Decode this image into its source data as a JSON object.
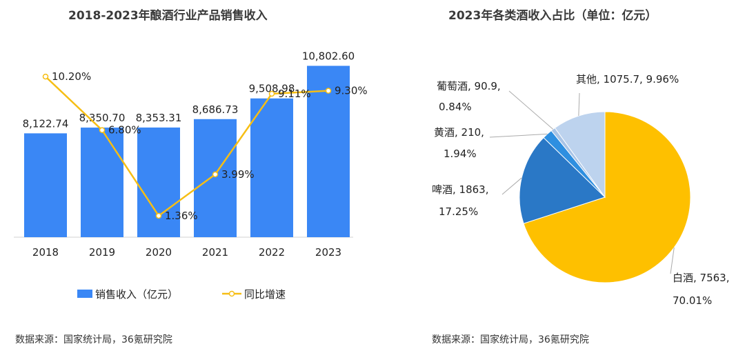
{
  "chart_data": [
    {
      "type": "bar",
      "title": "2018-2023年酿酒行业产品销售收入",
      "categories": [
        "2018",
        "2019",
        "2020",
        "2021",
        "2022",
        "2023"
      ],
      "series": [
        {
          "name": "销售收入（亿元）",
          "type": "bar",
          "values": [
            8122.74,
            8350.7,
            8353.31,
            8686.73,
            9508.98,
            10802.6
          ],
          "labels": [
            "8,122.74",
            "8,350.70",
            "8,353.31",
            "8,686.73",
            "9,508.98",
            "10,802.60"
          ]
        },
        {
          "name": "同比增速",
          "type": "line",
          "values": [
            10.2,
            6.8,
            1.36,
            3.99,
            9.11,
            9.3
          ],
          "labels": [
            "10.20%",
            "6.80%",
            "1.36%",
            "3.99%",
            "9.11%",
            "9.30%"
          ]
        }
      ],
      "colors": {
        "bar": "#3a87f5",
        "line": "#f6be14",
        "axis": "#d0d0d0"
      },
      "ylim": [
        4000,
        11500
      ],
      "y2lim": [
        0,
        12
      ],
      "legend": "bottom",
      "source": "数据来源：国家统计局，36氪研究院"
    },
    {
      "type": "pie",
      "title": "2023年各类酒收入占比（单位：亿元）",
      "slices": [
        {
          "name": "白酒",
          "value": 7563,
          "percent": "70.01%",
          "label1": "白酒, 7563,",
          "label2": "70.01%",
          "color": "#fec000"
        },
        {
          "name": "啤酒",
          "value": 1863,
          "percent": "17.25%",
          "label1": "啤酒, 1863,",
          "label2": "17.25%",
          "color": "#2a78c6"
        },
        {
          "name": "黄酒",
          "value": 210,
          "percent": "1.94%",
          "label1": "黄酒, 210,",
          "label2": "1.94%",
          "color": "#2e8fe0"
        },
        {
          "name": "葡萄酒",
          "value": 90.9,
          "percent": "0.84%",
          "label1": "葡萄酒, 90.9,",
          "label2": "0.84%",
          "color": "#a9c4e6"
        },
        {
          "name": "其他",
          "value": 1075.7,
          "percent": "9.96%",
          "label1": "其他, 1075.7, 9.96%",
          "label2": "",
          "color": "#bdd3ee"
        }
      ],
      "source": "数据来源：国家统计局，36氪研究院"
    }
  ]
}
